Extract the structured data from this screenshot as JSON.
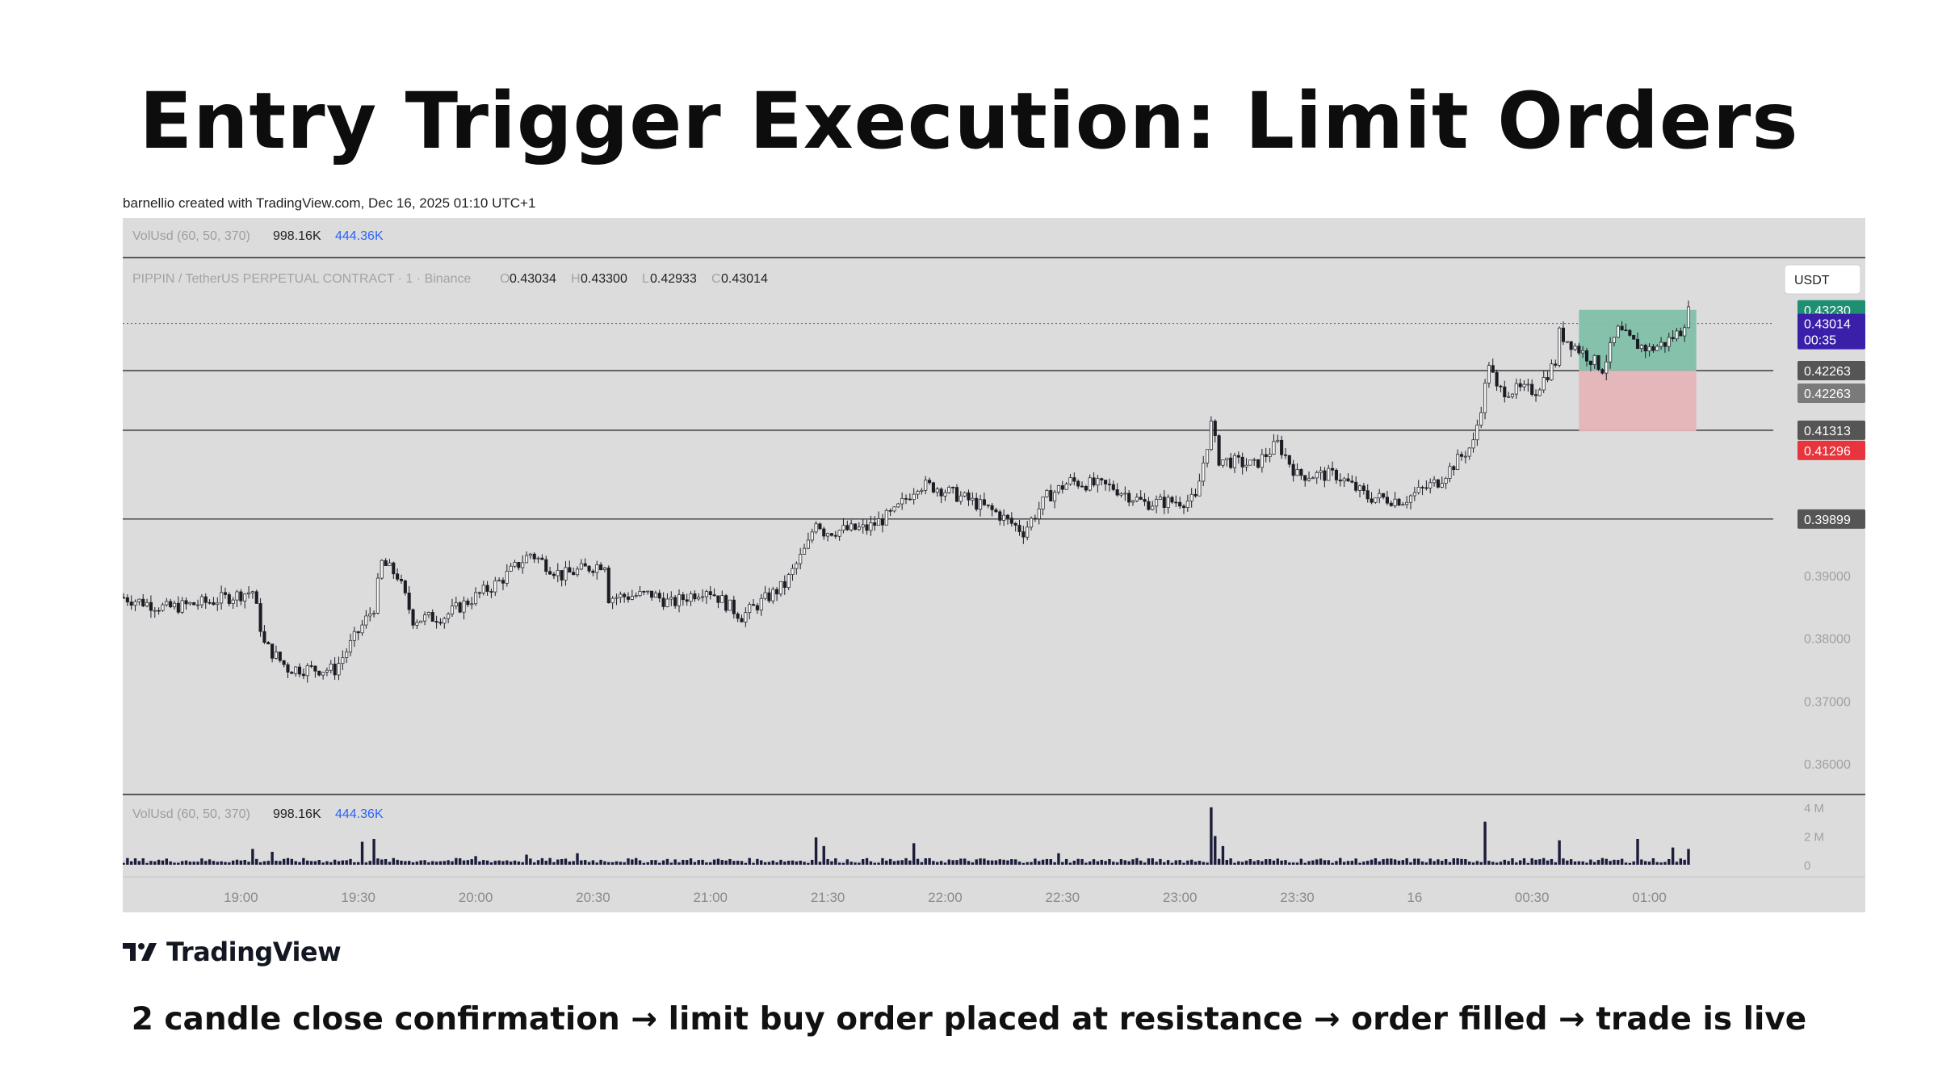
{
  "slide": {
    "title": "Entry Trigger Execution: Limit Orders",
    "credit": "barnellio created with TradingView.com, Dec 16, 2025 01:10 UTC+1",
    "caption": "2 candle close confirmation → limit buy order placed at resistance → order filled → trade is live",
    "brand": "TradingView"
  },
  "colors": {
    "chart_bg": "#dcdcdc",
    "candle": "#1c1c24",
    "volume_bar": "#1c1c3a",
    "take_profit_zone": "#7fbfa8",
    "stop_loss_zone": "#e4b4b8",
    "tp_label": "#1e8f72",
    "price_label": "#3a1fa8",
    "level_label": "#555555",
    "sl_label": "#e8343c",
    "dotted_price_line": "#5a5ab0"
  },
  "chart_data": {
    "type": "candlestick",
    "symbol_line": {
      "symbol": "PIPPIN / TetherUS PERPETUAL CONTRACT · 1 · Binance",
      "o_label": "O",
      "o": "0.43034",
      "h_label": "H",
      "h": "0.43300",
      "l_label": "L",
      "l": "0.42933",
      "c_label": "C",
      "c": "0.43014"
    },
    "indicator": {
      "name": "VolUsd (60, 50, 370)",
      "value1": "998.16K",
      "value2": "444.36K"
    },
    "currency_button": "USDT",
    "ylim": [
      0.355,
      0.4405
    ],
    "y_ticks": [
      "0.39000",
      "0.38000",
      "0.37000",
      "0.36000"
    ],
    "x_ticks": [
      "19:00",
      "19:30",
      "20:00",
      "20:30",
      "21:00",
      "21:30",
      "22:00",
      "22:30",
      "23:00",
      "23:30",
      "16",
      "00:30",
      "01:00"
    ],
    "volume_ticks": [
      "4 M",
      "2 M",
      "0"
    ],
    "horizontal_levels": [
      {
        "name": "resistance",
        "price": 0.42263,
        "label": "0.42263"
      },
      {
        "name": "stop-loss-level",
        "price": 0.41313,
        "label": "0.41313"
      },
      {
        "name": "support",
        "price": 0.39899,
        "label": "0.39899"
      }
    ],
    "position": {
      "entry": 0.42263,
      "take_profit": 0.4323,
      "stop_loss": 0.41296,
      "tp_label": "0.43230",
      "entry_label": "0.42263",
      "sl_label": "0.41296"
    },
    "current_price": {
      "price": 0.43014,
      "label": "0.43014",
      "countdown": "00:35"
    },
    "anchors": [
      [
        "18:30",
        0.3865
      ],
      [
        "18:41",
        0.3848
      ],
      [
        "18:52",
        0.3858
      ],
      [
        "19:03",
        0.3875
      ],
      [
        "19:06",
        0.379
      ],
      [
        "19:12",
        0.3752
      ],
      [
        "19:24",
        0.375
      ],
      [
        "19:28",
        0.379
      ],
      [
        "19:34",
        0.385
      ],
      [
        "19:36",
        0.392
      ],
      [
        "19:40",
        0.39
      ],
      [
        "19:44",
        0.383
      ],
      [
        "19:52",
        0.3835
      ],
      [
        "20:06",
        0.389
      ],
      [
        "20:14",
        0.3935
      ],
      [
        "20:22",
        0.39
      ],
      [
        "20:33",
        0.392
      ],
      [
        "20:34",
        0.3865
      ],
      [
        "20:45",
        0.387
      ],
      [
        "20:50",
        0.3855
      ],
      [
        "20:59",
        0.388
      ],
      [
        "21:08",
        0.3835
      ],
      [
        "21:19",
        0.3885
      ],
      [
        "21:25",
        0.395
      ],
      [
        "21:27",
        0.399
      ],
      [
        "21:29",
        0.397
      ],
      [
        "21:40",
        0.3975
      ],
      [
        "21:47",
        0.4
      ],
      [
        "21:53",
        0.4045
      ],
      [
        "21:58",
        0.404
      ],
      [
        "22:06",
        0.402
      ],
      [
        "22:13",
        0.4
      ],
      [
        "22:20",
        0.397
      ],
      [
        "22:26",
        0.4025
      ],
      [
        "22:32",
        0.405
      ],
      [
        "22:43",
        0.404
      ],
      [
        "22:51",
        0.4015
      ],
      [
        "23:04",
        0.402
      ],
      [
        "23:08",
        0.414
      ],
      [
        "23:10",
        0.4085
      ],
      [
        "23:19",
        0.4075
      ],
      [
        "23:25",
        0.411
      ],
      [
        "23:30",
        0.406
      ],
      [
        "23:40",
        0.406
      ],
      [
        "23:48",
        0.4025
      ],
      [
        "23:57",
        0.402
      ],
      [
        "00:06",
        0.405
      ],
      [
        "00:15",
        0.411
      ],
      [
        "00:18",
        0.42
      ],
      [
        "00:19",
        0.424
      ],
      [
        "00:21",
        0.4195
      ],
      [
        "00:31",
        0.4195
      ],
      [
        "00:36",
        0.424
      ],
      [
        "00:37",
        0.4285
      ],
      [
        "00:48",
        0.423
      ],
      [
        "00:52",
        0.429
      ],
      [
        "00:56",
        0.427
      ],
      [
        "01:00",
        0.426
      ],
      [
        "01:04",
        0.427
      ],
      [
        "01:08",
        0.429
      ],
      [
        "01:10",
        0.432
      ]
    ],
    "volume_spikes_musd": [
      [
        "19:03",
        1.1
      ],
      [
        "19:08",
        0.9
      ],
      [
        "19:31",
        1.6
      ],
      [
        "19:34",
        1.8
      ],
      [
        "20:00",
        0.6
      ],
      [
        "20:13",
        0.7
      ],
      [
        "20:26",
        0.8
      ],
      [
        "21:27",
        1.9
      ],
      [
        "21:29",
        1.3
      ],
      [
        "21:52",
        1.5
      ],
      [
        "22:29",
        0.8
      ],
      [
        "23:08",
        4.0
      ],
      [
        "23:09",
        2.0
      ],
      [
        "23:11",
        1.3
      ],
      [
        "00:18",
        3.0
      ],
      [
        "00:37",
        1.7
      ],
      [
        "00:57",
        1.8
      ],
      [
        "01:06",
        1.2
      ],
      [
        "01:10",
        1.1
      ]
    ]
  }
}
